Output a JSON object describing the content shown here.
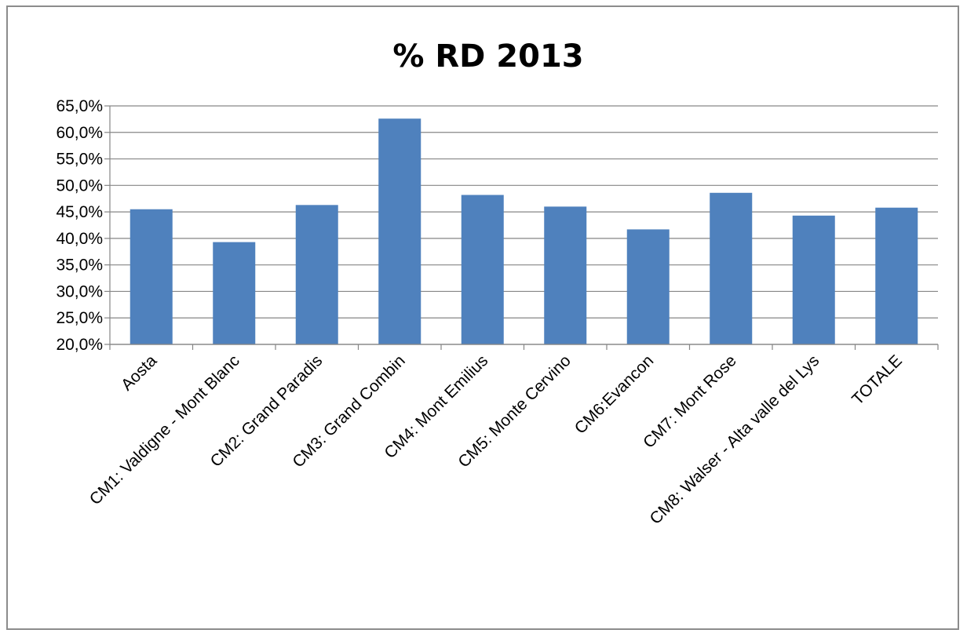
{
  "chart_data": {
    "type": "bar",
    "title": "% RD 2013",
    "xlabel": "",
    "ylabel": "",
    "ylim": [
      0.2,
      0.65
    ],
    "y_ticks": [
      0.2,
      0.25,
      0.3,
      0.35,
      0.4,
      0.45,
      0.5,
      0.55,
      0.6,
      0.65
    ],
    "y_tick_labels": [
      "20,0%",
      "25,0%",
      "30,0%",
      "35,0%",
      "40,0%",
      "45,0%",
      "50,0%",
      "55,0%",
      "60,0%",
      "65,0%"
    ],
    "categories": [
      "Aosta",
      "CM1: Valdigne - Mont Blanc",
      "CM2: Grand Paradis",
      "CM3: Grand Combin",
      "CM4: Mont Emilius",
      "CM5: Monte Cervino",
      "CM6:Evancon",
      "CM7: Mont Rose",
      "CM8: Walser - Alta valle del Lys",
      "TOTALE"
    ],
    "values": [
      0.455,
      0.393,
      0.463,
      0.626,
      0.482,
      0.46,
      0.417,
      0.486,
      0.443,
      0.458
    ],
    "grid": true,
    "legend": "none",
    "colors": {
      "bar": "#4f81bd",
      "grid": "#868686",
      "axis": "#868686"
    }
  }
}
